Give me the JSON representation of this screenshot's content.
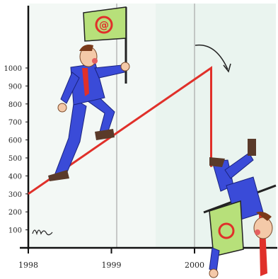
{
  "cartoon": {
    "flag_symbol": "@",
    "y_ticks": [
      "100",
      "200",
      "300",
      "400",
      "500",
      "600",
      "700",
      "800",
      "900",
      "1000"
    ],
    "x_ticks": [
      "1998",
      "1999",
      "2000"
    ]
  },
  "colors": {
    "trend_line": "#e0302a",
    "suit": "#3a4bd8",
    "flag_field": "#b7e07a",
    "flag_symbol": "#e0302a",
    "background_tint": "#e8f3ee"
  },
  "chart_data": {
    "type": "line",
    "x": [
      1998,
      2000.2,
      2000.2
    ],
    "y": [
      300,
      1000,
      450
    ],
    "xticks": [
      "1998",
      "1999",
      "2000"
    ],
    "yticks": [
      100,
      200,
      300,
      400,
      500,
      600,
      700,
      800,
      900,
      1000
    ],
    "xlim": [
      1998,
      2001
    ],
    "ylim": [
      0,
      1000
    ]
  }
}
